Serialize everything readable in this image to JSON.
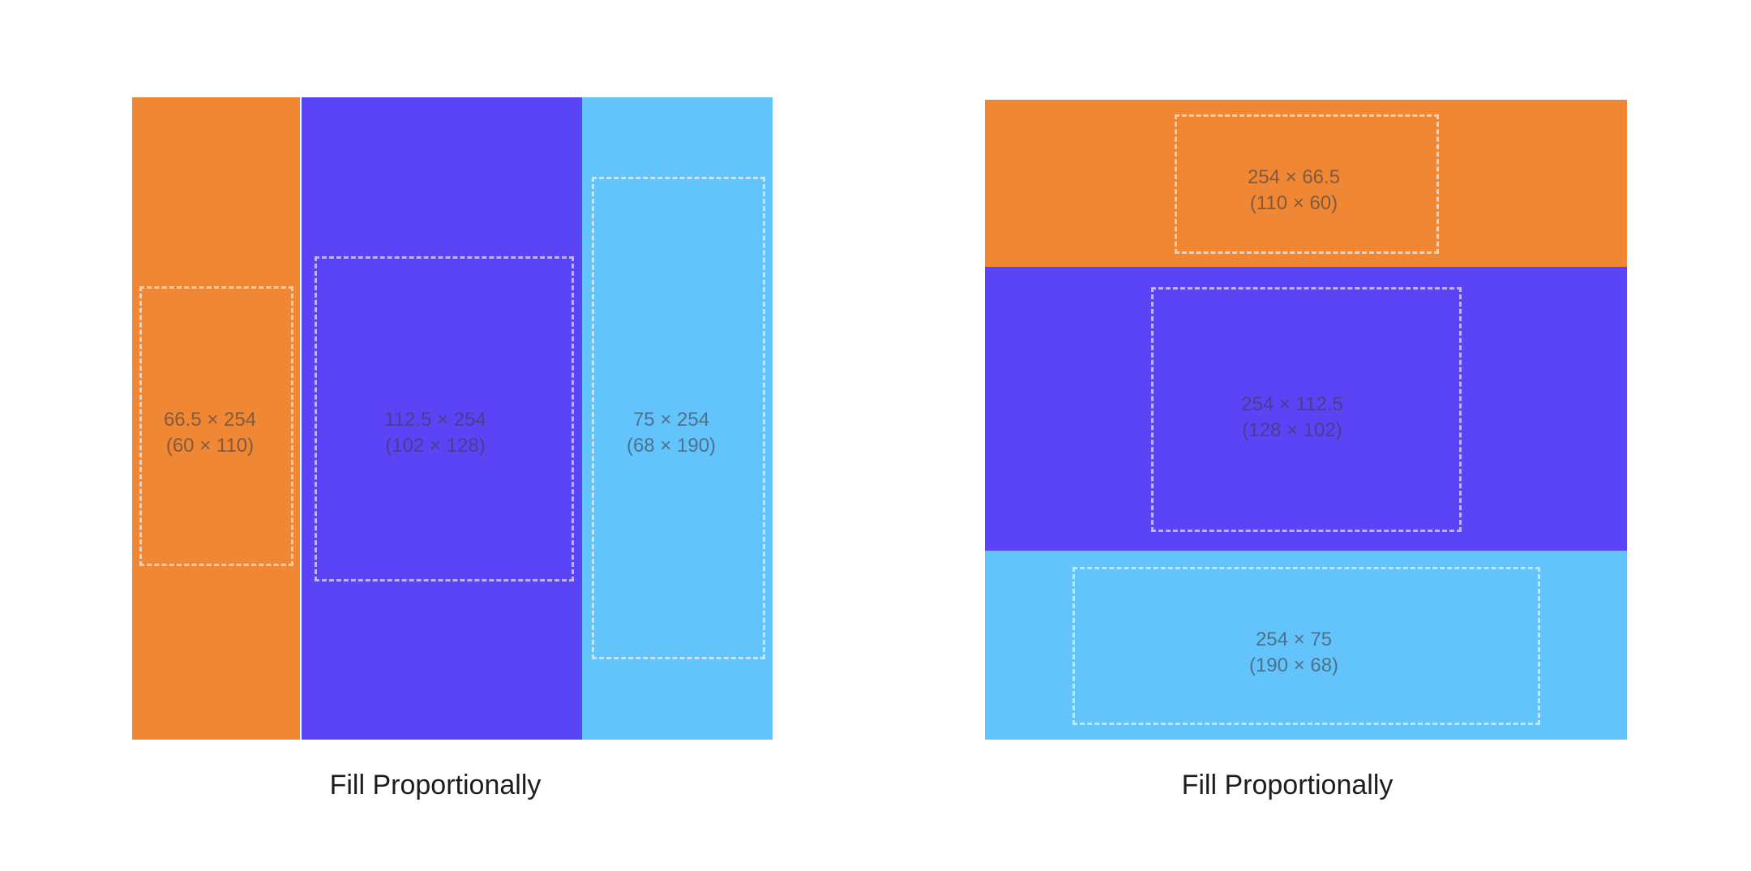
{
  "colors": {
    "orange": "#EF8735",
    "indigo": "#5B44F5",
    "light_blue": "#63C3FB",
    "background": "#FFFFFF"
  },
  "diagrams": [
    {
      "direction": "horizontal",
      "caption": "Fill Proportionally",
      "cells": [
        {
          "color": "orange",
          "size_label": "66.5 × 254",
          "content_label": "(60 × 110)"
        },
        {
          "color": "indigo",
          "size_label": "112.5 × 254",
          "content_label": "(102 × 128)"
        },
        {
          "color": "light_blue",
          "size_label": "75 × 254",
          "content_label": "(68 × 190)"
        }
      ]
    },
    {
      "direction": "vertical",
      "caption": "Fill Proportionally",
      "cells": [
        {
          "color": "orange",
          "size_label": "254 × 66.5",
          "content_label": "(110 × 60)"
        },
        {
          "color": "indigo",
          "size_label": "254 × 112.5",
          "content_label": "(128 × 102)"
        },
        {
          "color": "light_blue",
          "size_label": "254 × 75",
          "content_label": "(190 × 68)"
        }
      ]
    }
  ]
}
